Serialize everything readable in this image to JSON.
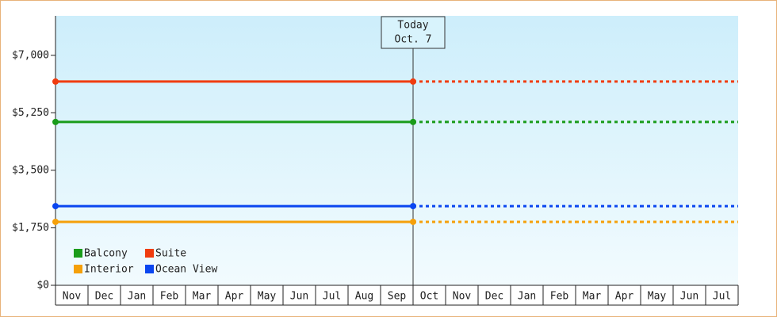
{
  "chart_data": {
    "type": "line",
    "categories": [
      "Nov",
      "Dec",
      "Jan",
      "Feb",
      "Mar",
      "Apr",
      "May",
      "Jun",
      "Jul",
      "Aug",
      "Sep",
      "Oct",
      "Nov",
      "Dec",
      "Jan",
      "Feb",
      "Mar",
      "Apr",
      "May",
      "Jun",
      "Jul"
    ],
    "series": [
      {
        "name": "Balcony",
        "color": "#1a9c1a",
        "values": [
          4970,
          4970,
          4970,
          4970,
          4970,
          4970,
          4970,
          4970,
          4970,
          4970,
          4970,
          4970,
          4970,
          4970,
          4970,
          4970,
          4970,
          4970,
          4970,
          4970,
          4970
        ]
      },
      {
        "name": "Suite",
        "color": "#f03c0f",
        "values": [
          6200,
          6200,
          6200,
          6200,
          6200,
          6200,
          6200,
          6200,
          6200,
          6200,
          6200,
          6200,
          6200,
          6200,
          6200,
          6200,
          6200,
          6200,
          6200,
          6200,
          6200
        ]
      },
      {
        "name": "Interior",
        "color": "#f5a00a",
        "values": [
          1930,
          1930,
          1930,
          1930,
          1930,
          1930,
          1930,
          1930,
          1930,
          1930,
          1930,
          1930,
          1930,
          1930,
          1930,
          1930,
          1930,
          1930,
          1930,
          1930,
          1930
        ]
      },
      {
        "name": "Ocean View",
        "color": "#0a46f0",
        "values": [
          2410,
          2410,
          2410,
          2410,
          2410,
          2410,
          2410,
          2410,
          2410,
          2410,
          2410,
          2410,
          2410,
          2410,
          2410,
          2410,
          2410,
          2410,
          2410,
          2410,
          2410
        ]
      }
    ],
    "today": {
      "index": 11,
      "label": [
        "Today",
        "Oct. 7"
      ]
    },
    "ylim": [
      0,
      8200
    ],
    "yticks": [
      {
        "value": 0,
        "label": "$0"
      },
      {
        "value": 1750,
        "label": "$1,750"
      },
      {
        "value": 3500,
        "label": "$3,500"
      },
      {
        "value": 5250,
        "label": "$5,250"
      },
      {
        "value": 7000,
        "label": "$7,000"
      }
    ],
    "legend": "bottom-left"
  }
}
